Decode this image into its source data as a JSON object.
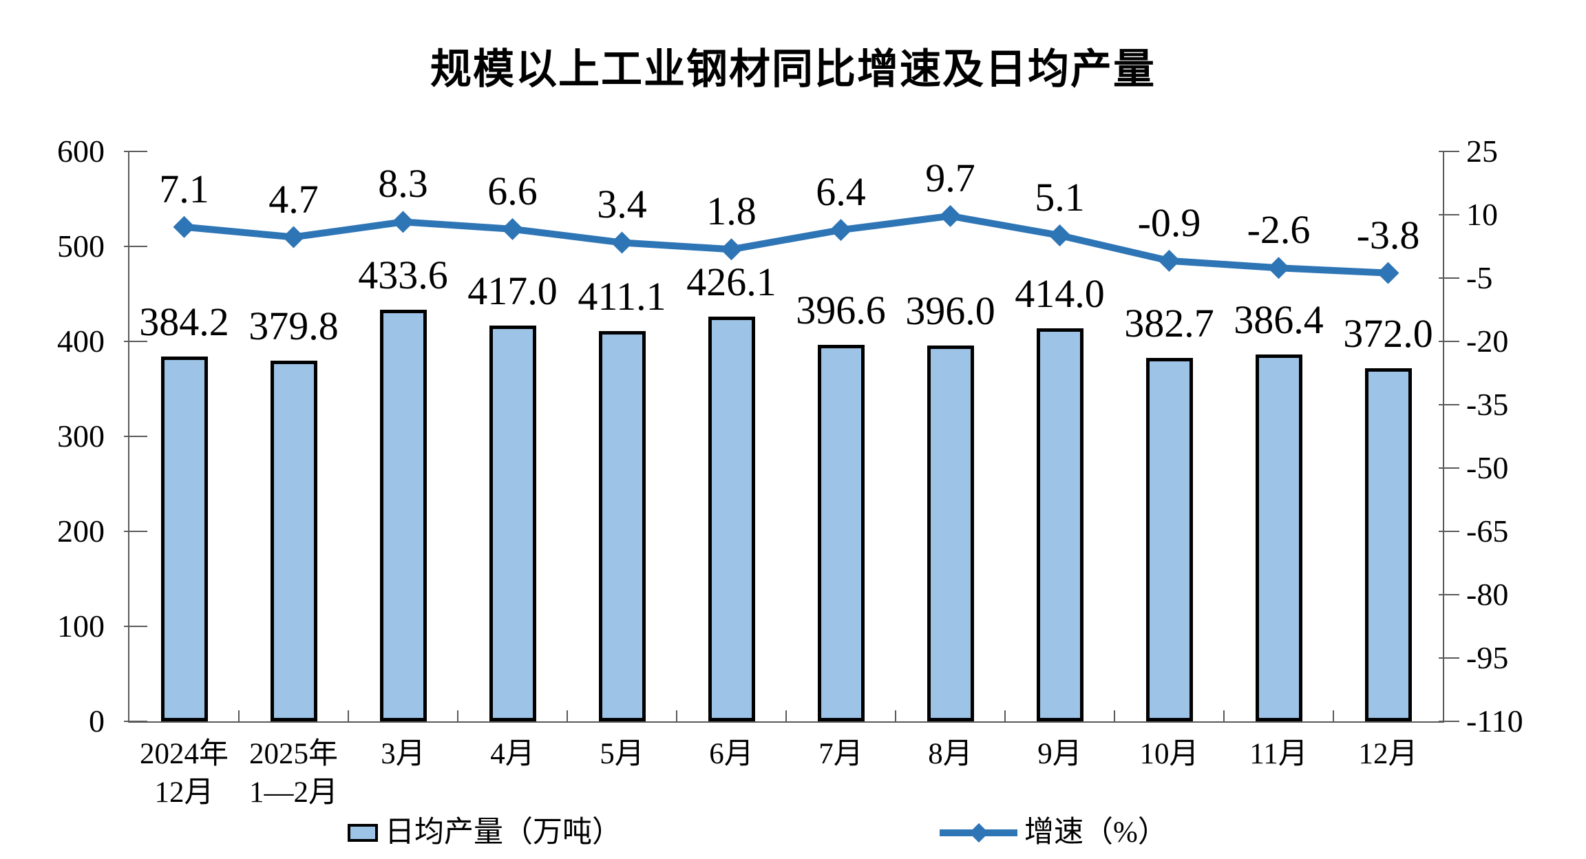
{
  "page": {
    "background": "#FFFFFF"
  },
  "colors": {
    "bar_fill": "#9DC3E6",
    "bar_border": "#000000",
    "line": "#2E75B6",
    "axis_line": "#595959",
    "text": "#000000",
    "background": "#FFFFFF"
  },
  "chart_data": {
    "type": "bar+line combo",
    "title": "规模以上工业钢材同比增速及日均产量",
    "categories": [
      "2024年12月",
      "2025年1—2月",
      "3月",
      "4月",
      "5月",
      "6月",
      "7月",
      "8月",
      "9月",
      "10月",
      "11月",
      "12月"
    ],
    "category_lines": [
      [
        "2024年",
        "12月"
      ],
      [
        "2025年",
        "1—2月"
      ],
      [
        "3月"
      ],
      [
        "4月"
      ],
      [
        "5月"
      ],
      [
        "6月"
      ],
      [
        "7月"
      ],
      [
        "8月"
      ],
      [
        "9月"
      ],
      [
        "10月"
      ],
      [
        "11月"
      ],
      [
        "12月"
      ]
    ],
    "series": [
      {
        "name": "日均产量（万吨）",
        "type": "bar",
        "axis": "left",
        "values": [
          384.2,
          379.8,
          433.6,
          417.0,
          411.1,
          426.1,
          396.6,
          396.0,
          414.0,
          382.7,
          386.4,
          372.0
        ],
        "labels": [
          "384.2",
          "379.8",
          "433.6",
          "417.0",
          "411.1",
          "426.1",
          "396.6",
          "396.0",
          "414.0",
          "382.7",
          "386.4",
          "372.0"
        ]
      },
      {
        "name": "增速（%）",
        "type": "line",
        "axis": "right",
        "values": [
          7.1,
          4.7,
          8.3,
          6.6,
          3.4,
          1.8,
          6.4,
          9.7,
          5.1,
          -0.9,
          -2.6,
          -3.8
        ],
        "labels": [
          "7.1",
          "4.7",
          "8.3",
          "6.6",
          "3.4",
          "1.8",
          "6.4",
          "9.7",
          "5.1",
          "-0.9",
          "-2.6",
          "-3.8"
        ]
      }
    ],
    "left_axis": {
      "min": 0,
      "max": 600,
      "step": 100,
      "tick_values": [
        600,
        500,
        400,
        300,
        200,
        100,
        0
      ],
      "tick_labels": [
        "600",
        "500",
        "400",
        "300",
        "200",
        "100",
        "0"
      ]
    },
    "right_axis": {
      "min": -110,
      "max": 25,
      "step": 15,
      "tick_values": [
        25,
        10,
        -5,
        -20,
        -35,
        -50,
        -65,
        -80,
        -95,
        -110
      ],
      "tick_labels": [
        "25",
        "10",
        "-5",
        "-20",
        "-35",
        "-50",
        "-65",
        "-80",
        "-95",
        "-110"
      ]
    },
    "grid": false,
    "legend_position": "bottom"
  },
  "legend": {
    "items": [
      {
        "label": "日均产量（万吨）",
        "swatch": "bar"
      },
      {
        "label": "增速（%）",
        "swatch": "line-diamond"
      }
    ]
  }
}
